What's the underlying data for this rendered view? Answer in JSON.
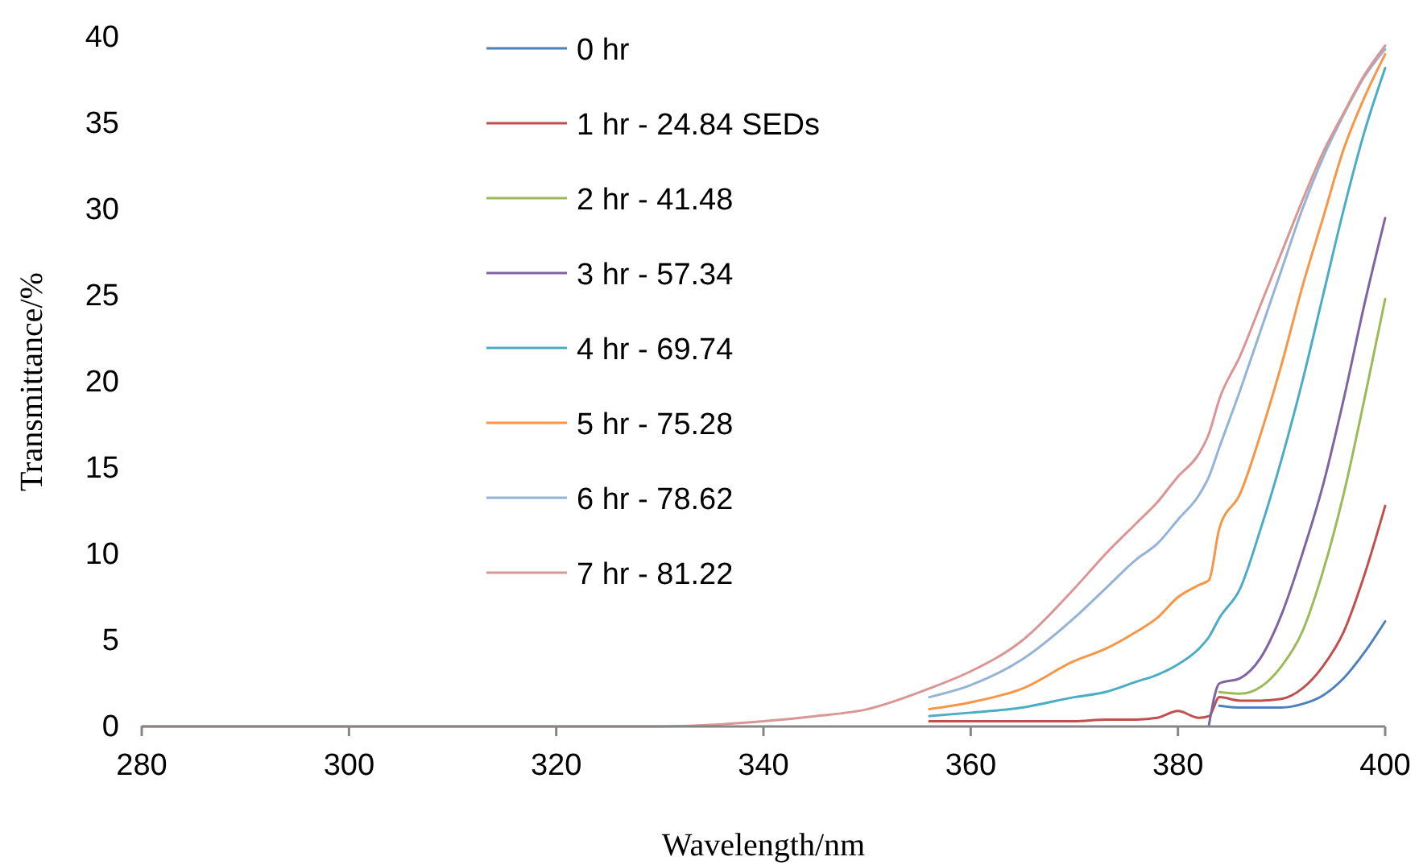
{
  "chart_data": {
    "type": "line",
    "xlabel": "Wavelength/nm",
    "ylabel": "Transmittance/%",
    "x": [
      280,
      300,
      320,
      330,
      340,
      345,
      350,
      356,
      360,
      365,
      370,
      373,
      376,
      378,
      380,
      382,
      383,
      384,
      386,
      388,
      390,
      392,
      394,
      396,
      398,
      400
    ],
    "xlim": [
      280,
      400
    ],
    "xticks": [
      280,
      300,
      320,
      340,
      360,
      380,
      400
    ],
    "ylim": [
      0,
      40
    ],
    "yticks": [
      0,
      5,
      10,
      15,
      20,
      25,
      30,
      35,
      40
    ],
    "grid": false,
    "legend": "top",
    "marker": "none",
    "line_style": "solid",
    "series": [
      {
        "name": "0 hr",
        "color": "#4f81bd",
        "x": [
          384,
          386,
          388,
          390,
          392,
          394,
          396,
          398,
          400
        ],
        "values": [
          1.2,
          1.1,
          1.1,
          1.1,
          1.3,
          1.8,
          2.8,
          4.3,
          6.1
        ]
      },
      {
        "name": "1 hr - 24.84 SEDs",
        "color": "#c0504d",
        "x": [
          356,
          360,
          365,
          370,
          373,
          376,
          378,
          380,
          382,
          383,
          384,
          386,
          388,
          390,
          392,
          394,
          396,
          398,
          400
        ],
        "values": [
          0.3,
          0.3,
          0.3,
          0.3,
          0.4,
          0.4,
          0.5,
          0.9,
          0.5,
          0.6,
          1.7,
          1.5,
          1.5,
          1.6,
          2.2,
          3.5,
          5.5,
          8.8,
          12.8
        ]
      },
      {
        "name": "2 hr - 41.48",
        "color": "#9bbb59",
        "x": [
          384,
          386,
          388,
          390,
          392,
          394,
          396,
          398,
          400
        ],
        "values": [
          2.0,
          1.9,
          2.3,
          3.5,
          5.5,
          9,
          13.5,
          19,
          24.8
        ]
      },
      {
        "name": "3 hr - 57.34",
        "color": "#8064a2",
        "x": [
          383,
          384,
          386,
          388,
          390,
          392,
          394,
          396,
          398,
          400
        ],
        "values": [
          0.1,
          2.5,
          2.8,
          4,
          6.5,
          10,
          14,
          19,
          24.5,
          29.5
        ]
      },
      {
        "name": "4 hr - 69.74",
        "color": "#4bacc6",
        "x": [
          356,
          360,
          365,
          370,
          373,
          376,
          378,
          380,
          382,
          383,
          384,
          386,
          388,
          390,
          392,
          394,
          396,
          398,
          400
        ],
        "values": [
          0.6,
          0.8,
          1.1,
          1.7,
          2.0,
          2.6,
          3.0,
          3.6,
          4.5,
          5.2,
          6.3,
          8,
          11.5,
          15.5,
          20,
          25,
          30,
          34.5,
          38.2
        ]
      },
      {
        "name": "5 hr - 75.28",
        "color": "#f79646",
        "x": [
          356,
          360,
          365,
          370,
          373,
          376,
          378,
          380,
          382,
          383,
          384,
          386,
          388,
          390,
          392,
          394,
          396,
          398,
          400
        ],
        "values": [
          1.0,
          1.4,
          2.2,
          3.8,
          4.5,
          5.5,
          6.3,
          7.5,
          8.2,
          8.5,
          11.5,
          13.5,
          17,
          21,
          25.5,
          29.5,
          33.5,
          36.5,
          39
        ]
      },
      {
        "name": "6 hr - 78.62",
        "color": "#95b3d7",
        "x": [
          356,
          360,
          365,
          370,
          373,
          376,
          378,
          380,
          382,
          383,
          384,
          386,
          388,
          390,
          392,
          394,
          396,
          398,
          400
        ],
        "values": [
          1.7,
          2.4,
          3.9,
          6.3,
          8,
          9.7,
          10.6,
          12,
          13.4,
          14.5,
          16.2,
          19.5,
          23,
          26.5,
          30,
          33,
          35.5,
          37.7,
          39.3
        ]
      },
      {
        "name": "7 hr - 81.22",
        "color": "#d99694",
        "values": [
          0,
          0,
          0,
          0,
          0.3,
          0.6,
          1,
          2.2,
          3.2,
          5,
          8,
          10,
          11.8,
          13,
          14.5,
          15.8,
          17,
          19,
          21.5,
          24.5,
          27.5,
          30.5,
          33.3,
          35.6,
          37.8,
          39.5
        ]
      }
    ]
  }
}
